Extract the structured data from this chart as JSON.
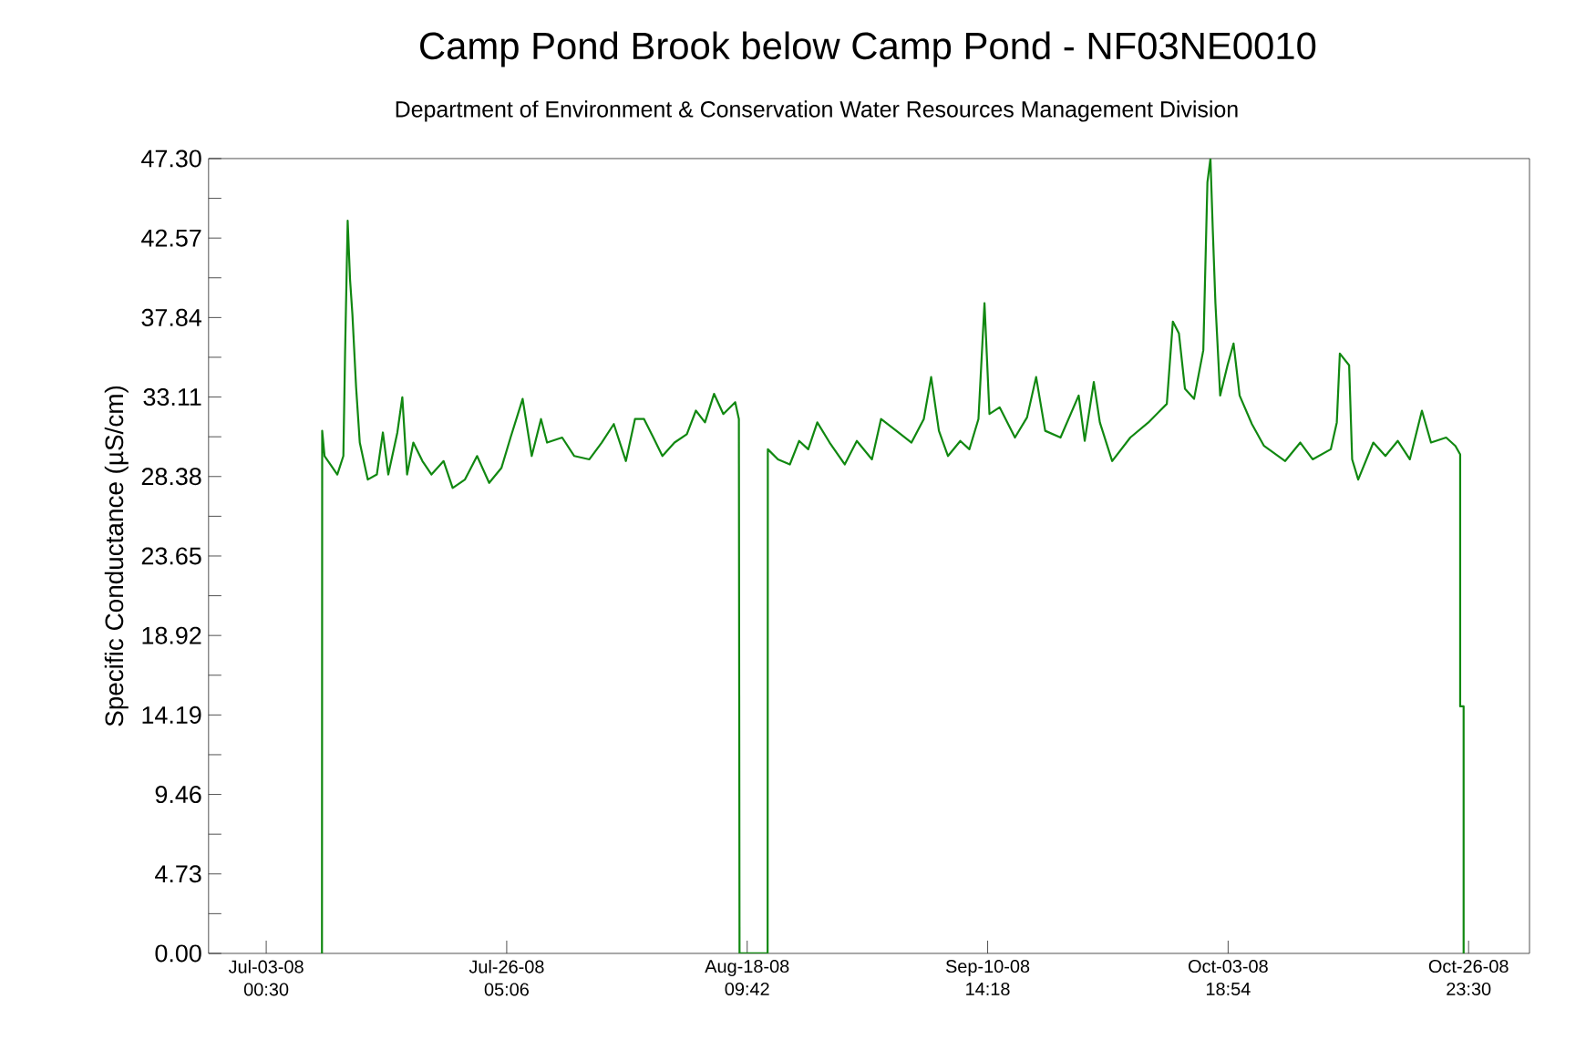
{
  "chart_data": {
    "type": "line",
    "title": "Camp Pond Brook below Camp Pond - NF03NE0010",
    "subtitle": "Department of Environment & Conservation Water Resources Management Division",
    "ylabel": "Specific Conductance (µS/cm)",
    "color": "#118811",
    "xlim": [
      "2008-06-27T11:00",
      "2008-11-01T20:30"
    ],
    "xticks": [
      {
        "value": "2008-07-03T00:30",
        "label": "Jul-03-08 00:30"
      },
      {
        "value": "2008-07-26T05:06",
        "label": "Jul-26-08 05:06"
      },
      {
        "value": "2008-08-18T09:42",
        "label": "Aug-18-08 09:42"
      },
      {
        "value": "2008-09-10T14:18",
        "label": "Sep-10-08 14:18"
      },
      {
        "value": "2008-10-03T18:54",
        "label": "Oct-03-08 18:54"
      },
      {
        "value": "2008-10-26T23:30",
        "label": "Oct-26-08 23:30"
      }
    ],
    "ylim": [
      0,
      47.3
    ],
    "yticks": [
      {
        "value": 0,
        "label": "0.00"
      },
      4.73,
      9.46,
      14.19,
      18.92,
      23.65,
      28.38,
      33.11,
      37.84,
      42.57,
      {
        "value": 47.3,
        "label": "47.30"
      }
    ],
    "x": [
      "2008-07-08T09:30",
      "2008-07-08T10:00",
      "2008-07-08T15:30",
      "2008-07-09T21:00",
      "2008-07-10T11:00",
      "2008-07-10T15:00",
      "2008-07-10T21:00",
      "2008-07-11T02:30",
      "2008-07-11T08:00",
      "2008-07-11T16:30",
      "2008-07-12T01:00",
      "2008-07-12T19:30",
      "2008-07-13T16:30",
      "2008-07-14T06:30",
      "2008-07-14T19:00",
      "2008-07-15T16:00",
      "2008-07-16T03:30",
      "2008-07-16T14:30",
      "2008-07-17T05:00",
      "2008-07-18T02:00",
      "2008-07-18T23:00",
      "2008-07-20T03:00",
      "2008-07-21T00:00",
      "2008-07-22T04:30",
      "2008-07-23T08:30",
      "2008-07-24T12:30",
      "2008-07-25T17:00",
      "2008-07-26T14:00",
      "2008-07-27T18:00",
      "2008-07-28T15:00",
      "2008-07-29T12:30",
      "2008-07-30T02:30",
      "2008-07-31T13:30",
      "2008-08-01T17:30",
      "2008-08-03T04:30",
      "2008-08-04T09:00",
      "2008-08-05T13:00",
      "2008-08-06T17:00",
      "2008-08-07T14:00",
      "2008-08-08T11:00",
      "2008-08-09T08:30",
      "2008-08-10T05:30",
      "2008-08-11T09:30",
      "2008-08-12T14:00",
      "2008-08-13T11:00",
      "2008-08-14T08:00",
      "2008-08-15T05:00",
      "2008-08-16T02:30",
      "2008-08-17T06:00",
      "2008-08-17T14:30",
      "2008-08-17T16:00",
      "2008-08-20T09:00",
      "2008-08-20T09:30",
      "2008-08-21T09:00",
      "2008-08-22T12:30",
      "2008-08-23T10:00",
      "2008-08-24T07:00",
      "2008-08-25T04:00",
      "2008-08-26T08:30",
      "2008-08-27T19:30",
      "2008-08-28T23:30",
      "2008-08-30T10:30",
      "2008-08-31T07:30",
      "2008-09-01T19:00",
      "2008-09-03T06:00",
      "2008-09-04T10:30",
      "2008-09-05T03:30",
      "2008-09-05T21:30",
      "2008-09-06T18:30",
      "2008-09-07T23:00",
      "2008-09-08T20:00",
      "2008-09-09T17:00",
      "2008-09-10T07:00",
      "2008-09-10T18:30",
      "2008-09-11T18:00",
      "2008-09-13T05:30",
      "2008-09-14T09:30",
      "2008-09-15T06:30",
      "2008-09-16T03:30",
      "2008-09-17T15:00",
      "2008-09-19T09:00",
      "2008-09-19T23:00",
      "2008-09-20T20:00",
      "2008-09-21T10:00",
      "2008-09-22T14:30",
      "2008-09-24T08:30",
      "2008-09-26T02:30",
      "2008-09-27T21:00",
      "2008-09-28T11:00",
      "2008-09-29T01:00",
      "2008-09-29T15:00",
      "2008-09-30T12:00",
      "2008-10-01T09:30",
      "2008-10-01T19:00",
      "2008-10-02T02:00",
      "2008-10-02T07:30",
      "2008-10-02T13:30",
      "2008-10-03T00:30",
      "2008-10-03T17:30",
      "2008-10-04T07:30",
      "2008-10-04T21:30",
      "2008-10-06T02:00",
      "2008-10-07T06:00",
      "2008-10-09T07:00",
      "2008-10-10T18:00",
      "2008-10-11T22:30",
      "2008-10-13T16:30",
      "2008-10-14T06:30",
      "2008-10-14T13:30",
      "2008-10-15T11:00",
      "2008-10-15T18:00",
      "2008-10-16T08:00",
      "2008-10-17T19:00",
      "2008-10-18T23:00",
      "2008-10-20T03:30",
      "2008-10-21T07:30",
      "2008-10-22T11:30",
      "2008-10-23T08:30",
      "2008-10-24T19:30",
      "2008-10-25T17:00",
      "2008-10-26T04:00",
      "2008-10-26T04:00",
      "2008-10-26T12:00",
      "2008-10-26T12:00"
    ],
    "values": [
      0,
      31.1,
      29.6,
      28.5,
      29.6,
      35.8,
      43.6,
      40.1,
      38.0,
      33.7,
      30.4,
      28.2,
      28.5,
      31.0,
      28.5,
      31.0,
      33.1,
      28.5,
      30.4,
      29.3,
      28.5,
      29.3,
      27.7,
      28.2,
      29.6,
      28.0,
      28.9,
      30.7,
      33.0,
      29.6,
      31.8,
      30.4,
      30.7,
      29.6,
      29.4,
      30.4,
      31.5,
      29.3,
      31.8,
      31.8,
      30.7,
      29.6,
      30.4,
      30.9,
      32.3,
      31.6,
      33.3,
      32.1,
      32.8,
      31.8,
      0,
      0,
      30.0,
      29.4,
      29.1,
      30.5,
      30.0,
      31.6,
      30.4,
      29.1,
      30.5,
      29.4,
      31.8,
      31.1,
      30.4,
      31.8,
      34.3,
      31.1,
      29.6,
      30.5,
      30.0,
      31.8,
      38.7,
      32.1,
      32.5,
      30.7,
      31.9,
      34.3,
      31.1,
      30.7,
      33.2,
      30.5,
      34.0,
      31.6,
      29.3,
      30.7,
      31.6,
      32.7,
      37.6,
      36.9,
      33.6,
      33.0,
      35.9,
      45.9,
      47.3,
      43.0,
      38.7,
      33.2,
      35.0,
      36.3,
      33.2,
      31.5,
      30.2,
      29.3,
      30.4,
      29.4,
      30.0,
      31.6,
      35.7,
      35.0,
      29.4,
      28.2,
      30.4,
      29.6,
      30.5,
      29.4,
      32.3,
      30.4,
      30.7,
      30.2,
      29.7,
      14.7,
      14.7,
      0
    ]
  }
}
